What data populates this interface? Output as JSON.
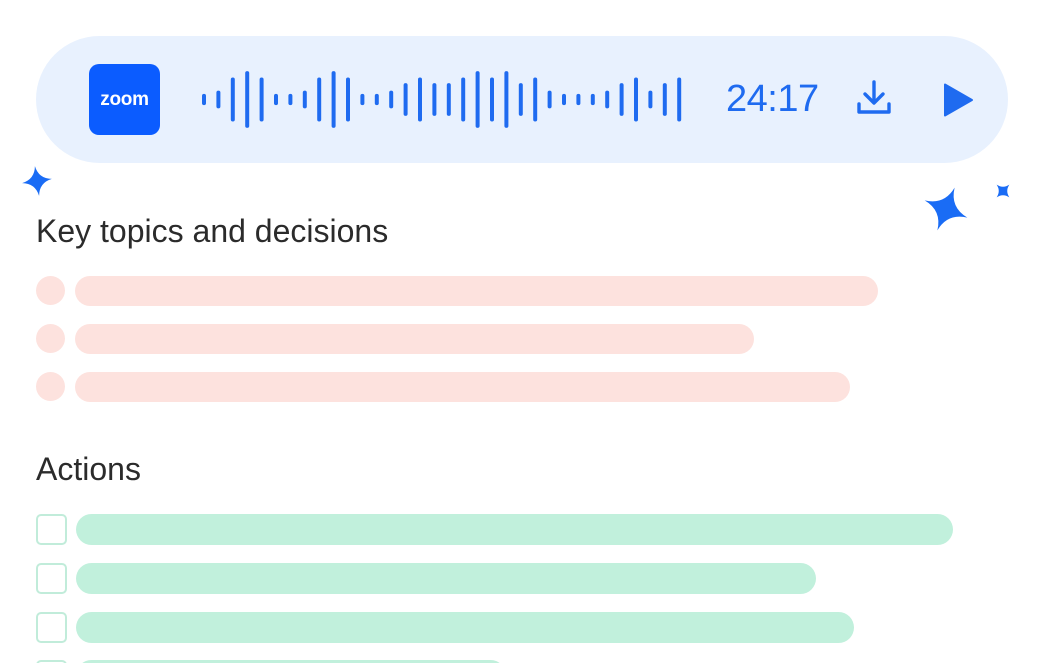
{
  "player": {
    "app_logo_text": "zoom",
    "duration": "24:17",
    "waveform_heights": [
      0.16,
      0.25,
      0.62,
      0.8,
      0.62,
      0.16,
      0.16,
      0.25,
      0.62,
      0.8,
      0.62,
      0.16,
      0.16,
      0.25,
      0.46,
      0.62,
      0.46,
      0.46,
      0.62,
      0.8,
      0.62,
      0.8,
      0.46,
      0.62,
      0.25,
      0.16,
      0.16,
      0.16,
      0.25,
      0.46,
      0.62,
      0.25,
      0.46,
      0.62
    ],
    "colors": {
      "background": "#e8f1fe",
      "accent": "#1f6bf0",
      "logo": "#0b5cff"
    }
  },
  "sections": {
    "topics_title": "Key topics and decisions",
    "actions_title": "Actions"
  },
  "topics": [
    {
      "bar_fill": 0.915
    },
    {
      "bar_fill": 0.78
    },
    {
      "bar_fill": 0.885
    }
  ],
  "actions": [
    {
      "bar_fill": 0.955
    },
    {
      "bar_fill": 0.812
    },
    {
      "bar_fill": 0.852
    },
    {
      "bar_fill": 0.49
    }
  ],
  "icons": {
    "download": "download-icon",
    "play": "play-icon",
    "sparkle": "sparkle-icon"
  },
  "colors": {
    "topic_placeholder": "#fde2de",
    "action_placeholder": "#c1f0dc",
    "checkbox_border": "#c1ecda",
    "sparkle": "#1a6cf5"
  }
}
